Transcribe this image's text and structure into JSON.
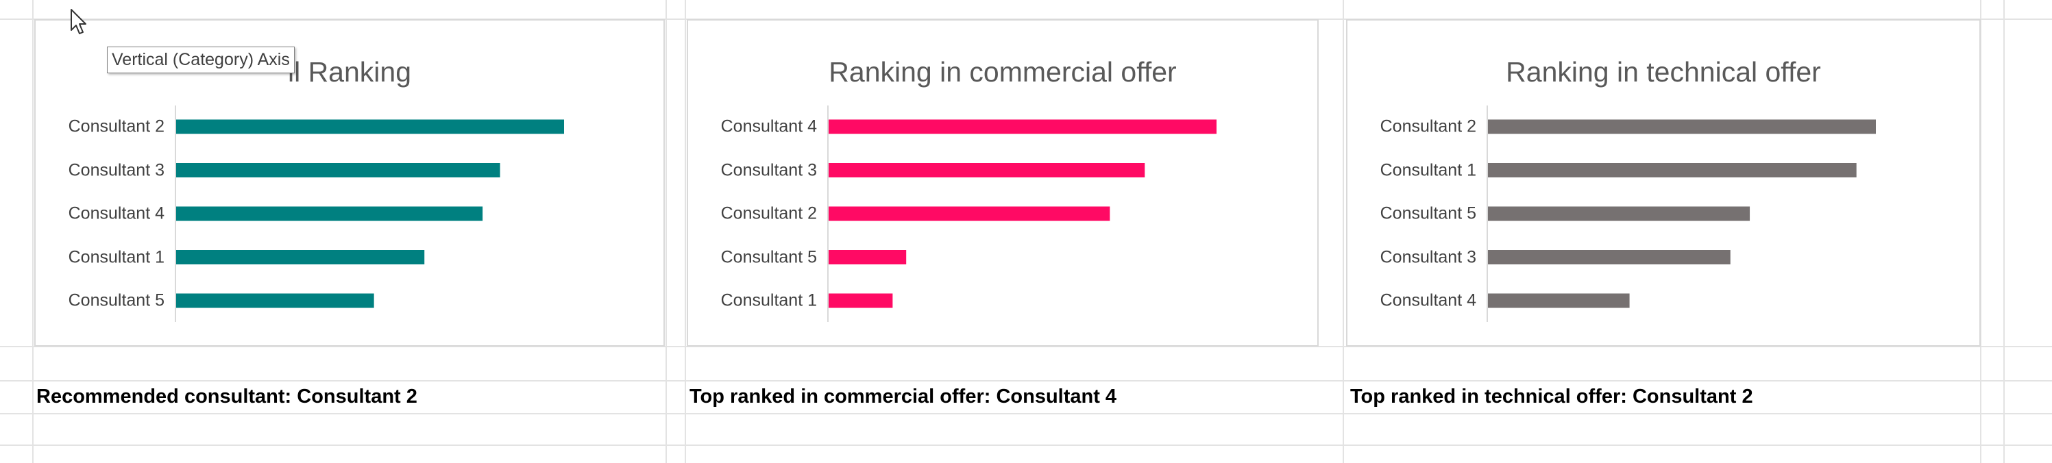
{
  "spreadsheet": {
    "gridline_color": "#e3e3e3"
  },
  "tooltip": {
    "text": "Vertical (Category) Axis"
  },
  "charts": [
    {
      "title": "ll Ranking",
      "color": "#008080",
      "caption": "Recommended consultant: Consultant 2"
    },
    {
      "title": "Ranking in commercial offer",
      "color": "#ff0a64",
      "caption": "Top ranked in commercial offer: Consultant 4"
    },
    {
      "title": "Ranking in technical offer",
      "color": "#767171",
      "caption": "Top ranked in technical offer: Consultant 2"
    }
  ],
  "chart_data": [
    {
      "type": "bar",
      "orientation": "horizontal",
      "title": "ll Ranking",
      "categories": [
        "Consultant 2",
        "Consultant 3",
        "Consultant 4",
        "Consultant 1",
        "Consultant 5"
      ],
      "values": [
        100,
        83.5,
        79,
        64,
        51
      ],
      "xlim": [
        0,
        100
      ],
      "color": "#008080",
      "grid": false,
      "legend": false
    },
    {
      "type": "bar",
      "orientation": "horizontal",
      "title": "Ranking in commercial offer",
      "categories": [
        "Consultant 4",
        "Consultant 3",
        "Consultant 2",
        "Consultant 5",
        "Consultant 1"
      ],
      "values": [
        100,
        81.5,
        72.5,
        20,
        16.5
      ],
      "xlim": [
        0,
        100
      ],
      "color": "#ff0a64",
      "grid": false,
      "legend": false
    },
    {
      "type": "bar",
      "orientation": "horizontal",
      "title": "Ranking in technical offer",
      "categories": [
        "Consultant 2",
        "Consultant 1",
        "Consultant 5",
        "Consultant 3",
        "Consultant 4"
      ],
      "values": [
        100,
        95,
        67.5,
        62.5,
        36.5
      ],
      "xlim": [
        0,
        100
      ],
      "color": "#767171",
      "grid": false,
      "legend": false
    }
  ]
}
